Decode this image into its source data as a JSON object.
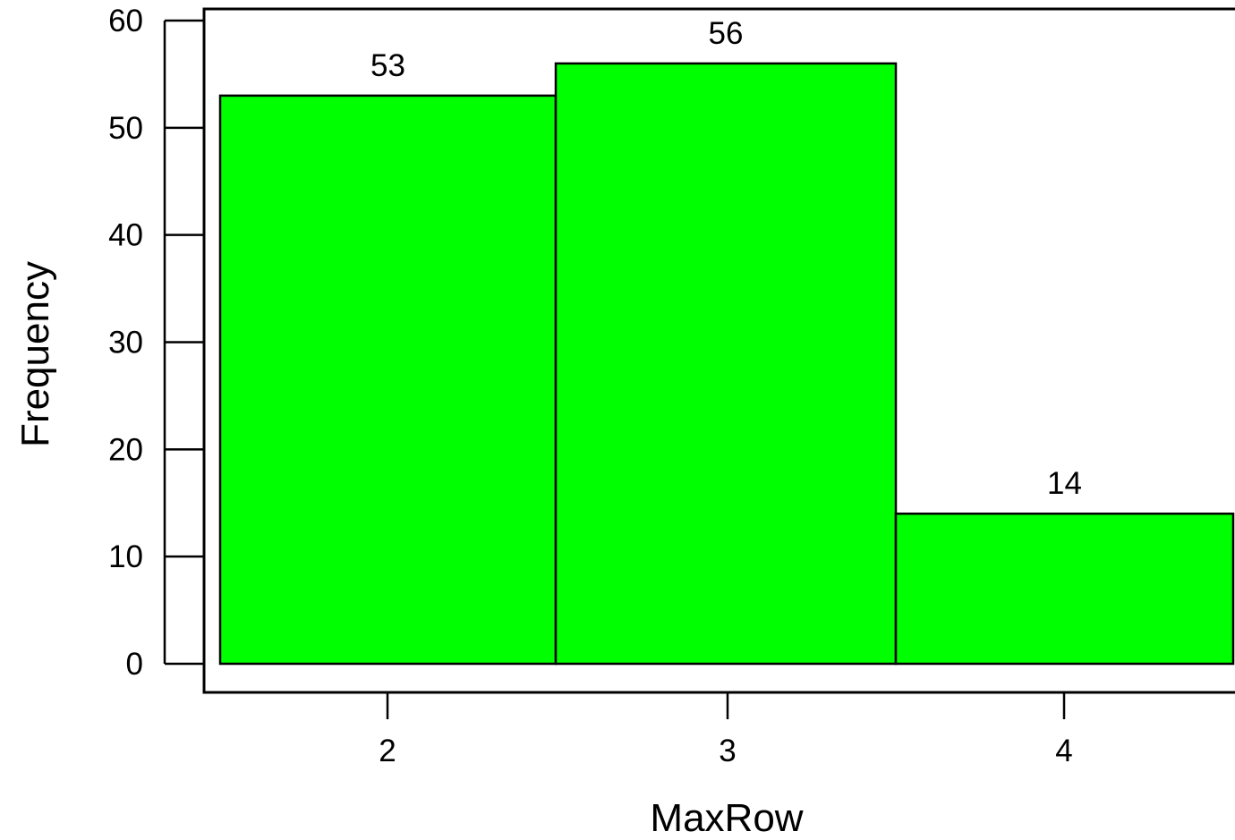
{
  "chart_data": {
    "type": "bar",
    "categories": [
      "2",
      "3",
      "4"
    ],
    "values": [
      53,
      56,
      14
    ],
    "data_labels": [
      "53",
      "56",
      "14"
    ],
    "title": "",
    "xlabel": "MaxRow",
    "ylabel": "Frequency",
    "ylim": [
      0,
      60
    ],
    "yticks": [
      "0",
      "10",
      "20",
      "30",
      "40",
      "50",
      "60"
    ],
    "grid": false,
    "legend": "none",
    "bar_color": "#00ff00",
    "edge_color": "#000000"
  }
}
